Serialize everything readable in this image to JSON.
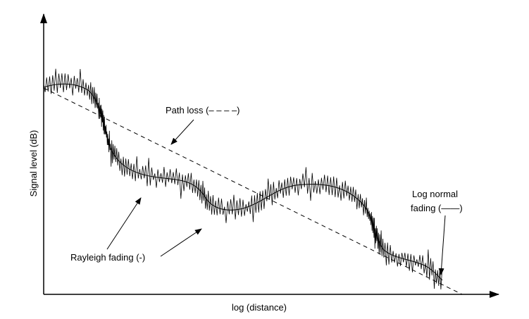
{
  "axes": {
    "y_label": "Signal level (dB)",
    "x_label": "log (distance)"
  },
  "annotations": {
    "path_loss": "Path loss (– – – –)",
    "rayleigh_fading": "Rayleigh fading (-)",
    "log_normal": [
      "Log normal",
      "fading (——)"
    ]
  }
}
